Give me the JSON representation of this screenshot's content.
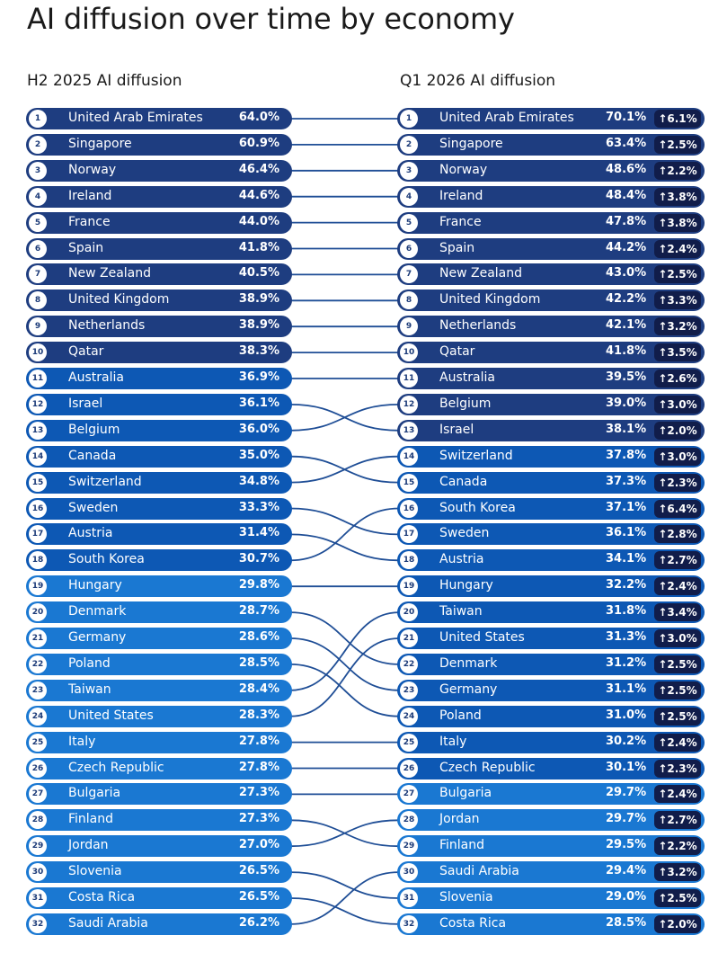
{
  "title": "AI diffusion over time by economy",
  "left_header": "H2 2025 AI diffusion",
  "right_header": "Q1 2026 AI diffusion",
  "colors": {
    "tier1": "#1e3d80",
    "tier2": "#0d58b4",
    "tier3": "#1a78d2",
    "delta_bg": "#111d4a",
    "link": "#1f4e96"
  },
  "chart_data": {
    "type": "table",
    "h2_2025": [
      {
        "rank": "1",
        "economy": "United Arab Emirates",
        "value": "64.0%",
        "share": 64.0
      },
      {
        "rank": "2",
        "economy": "Singapore",
        "value": "60.9%",
        "share": 60.9
      },
      {
        "rank": "3",
        "economy": "Norway",
        "value": "46.4%",
        "share": 46.4
      },
      {
        "rank": "4",
        "economy": "Ireland",
        "value": "44.6%",
        "share": 44.6
      },
      {
        "rank": "5",
        "economy": "France",
        "value": "44.0%",
        "share": 44.0
      },
      {
        "rank": "6",
        "economy": "Spain",
        "value": "41.8%",
        "share": 41.8
      },
      {
        "rank": "7",
        "economy": "New Zealand",
        "value": "40.5%",
        "share": 40.5
      },
      {
        "rank": "8",
        "economy": "United Kingdom",
        "value": "38.9%",
        "share": 38.9
      },
      {
        "rank": "9",
        "economy": "Netherlands",
        "value": "38.9%",
        "share": 38.9
      },
      {
        "rank": "10",
        "economy": "Qatar",
        "value": "38.3%",
        "share": 38.3
      },
      {
        "rank": "11",
        "economy": "Australia",
        "value": "36.9%",
        "share": 36.9
      },
      {
        "rank": "12",
        "economy": "Israel",
        "value": "36.1%",
        "share": 36.1
      },
      {
        "rank": "13",
        "economy": "Belgium",
        "value": "36.0%",
        "share": 36.0
      },
      {
        "rank": "14",
        "economy": "Canada",
        "value": "35.0%",
        "share": 35.0
      },
      {
        "rank": "15",
        "economy": "Switzerland",
        "value": "34.8%",
        "share": 34.8
      },
      {
        "rank": "16",
        "economy": "Sweden",
        "value": "33.3%",
        "share": 33.3
      },
      {
        "rank": "17",
        "economy": "Austria",
        "value": "31.4%",
        "share": 31.4
      },
      {
        "rank": "18",
        "economy": "South Korea",
        "value": "30.7%",
        "share": 30.7
      },
      {
        "rank": "19",
        "economy": "Hungary",
        "value": "29.8%",
        "share": 29.8
      },
      {
        "rank": "20",
        "economy": "Denmark",
        "value": "28.7%",
        "share": 28.7
      },
      {
        "rank": "21",
        "economy": "Germany",
        "value": "28.6%",
        "share": 28.6
      },
      {
        "rank": "22",
        "economy": "Poland",
        "value": "28.5%",
        "share": 28.5
      },
      {
        "rank": "23",
        "economy": "Taiwan",
        "value": "28.4%",
        "share": 28.4
      },
      {
        "rank": "24",
        "economy": "United States",
        "value": "28.3%",
        "share": 28.3
      },
      {
        "rank": "25",
        "economy": "Italy",
        "value": "27.8%",
        "share": 27.8
      },
      {
        "rank": "26",
        "economy": "Czech Republic",
        "value": "27.8%",
        "share": 27.8
      },
      {
        "rank": "27",
        "economy": "Bulgaria",
        "value": "27.3%",
        "share": 27.3
      },
      {
        "rank": "28",
        "economy": "Finland",
        "value": "27.3%",
        "share": 27.3
      },
      {
        "rank": "29",
        "economy": "Jordan",
        "value": "27.0%",
        "share": 27.0
      },
      {
        "rank": "30",
        "economy": "Slovenia",
        "value": "26.5%",
        "share": 26.5
      },
      {
        "rank": "31",
        "economy": "Costa Rica",
        "value": "26.5%",
        "share": 26.5
      },
      {
        "rank": "32",
        "economy": "Saudi Arabia",
        "value": "26.2%",
        "share": 26.2
      }
    ],
    "q1_2026": [
      {
        "rank": "1",
        "economy": "United Arab Emirates",
        "value": "70.1%",
        "share": 70.1,
        "change": "↑6.1%"
      },
      {
        "rank": "2",
        "economy": "Singapore",
        "value": "63.4%",
        "share": 63.4,
        "change": "↑2.5%"
      },
      {
        "rank": "3",
        "economy": "Norway",
        "value": "48.6%",
        "share": 48.6,
        "change": "↑2.2%"
      },
      {
        "rank": "4",
        "economy": "Ireland",
        "value": "48.4%",
        "share": 48.4,
        "change": "↑3.8%"
      },
      {
        "rank": "5",
        "economy": "France",
        "value": "47.8%",
        "share": 47.8,
        "change": "↑3.8%"
      },
      {
        "rank": "6",
        "economy": "Spain",
        "value": "44.2%",
        "share": 44.2,
        "change": "↑2.4%"
      },
      {
        "rank": "7",
        "economy": "New Zealand",
        "value": "43.0%",
        "share": 43.0,
        "change": "↑2.5%"
      },
      {
        "rank": "8",
        "economy": "United Kingdom",
        "value": "42.2%",
        "share": 42.2,
        "change": "↑3.3%"
      },
      {
        "rank": "9",
        "economy": "Netherlands",
        "value": "42.1%",
        "share": 42.1,
        "change": "↑3.2%"
      },
      {
        "rank": "10",
        "economy": "Qatar",
        "value": "41.8%",
        "share": 41.8,
        "change": "↑3.5%"
      },
      {
        "rank": "11",
        "economy": "Australia",
        "value": "39.5%",
        "share": 39.5,
        "change": "↑2.6%"
      },
      {
        "rank": "12",
        "economy": "Belgium",
        "value": "39.0%",
        "share": 39.0,
        "change": "↑3.0%"
      },
      {
        "rank": "13",
        "economy": "Israel",
        "value": "38.1%",
        "share": 38.1,
        "change": "↑2.0%"
      },
      {
        "rank": "14",
        "economy": "Switzerland",
        "value": "37.8%",
        "share": 37.8,
        "change": "↑3.0%"
      },
      {
        "rank": "15",
        "economy": "Canada",
        "value": "37.3%",
        "share": 37.3,
        "change": "↑2.3%"
      },
      {
        "rank": "16",
        "economy": "South Korea",
        "value": "37.1%",
        "share": 37.1,
        "change": "↑6.4%"
      },
      {
        "rank": "17",
        "economy": "Sweden",
        "value": "36.1%",
        "share": 36.1,
        "change": "↑2.8%"
      },
      {
        "rank": "18",
        "economy": "Austria",
        "value": "34.1%",
        "share": 34.1,
        "change": "↑2.7%"
      },
      {
        "rank": "19",
        "economy": "Hungary",
        "value": "32.2%",
        "share": 32.2,
        "change": "↑2.4%"
      },
      {
        "rank": "20",
        "economy": "Taiwan",
        "value": "31.8%",
        "share": 31.8,
        "change": "↑3.4%"
      },
      {
        "rank": "21",
        "economy": "United States",
        "value": "31.3%",
        "share": 31.3,
        "change": "↑3.0%"
      },
      {
        "rank": "22",
        "economy": "Denmark",
        "value": "31.2%",
        "share": 31.2,
        "change": "↑2.5%"
      },
      {
        "rank": "23",
        "economy": "Germany",
        "value": "31.1%",
        "share": 31.1,
        "change": "↑2.5%"
      },
      {
        "rank": "24",
        "economy": "Poland",
        "value": "31.0%",
        "share": 31.0,
        "change": "↑2.5%"
      },
      {
        "rank": "25",
        "economy": "Italy",
        "value": "30.2%",
        "share": 30.2,
        "change": "↑2.4%"
      },
      {
        "rank": "26",
        "economy": "Czech Republic",
        "value": "30.1%",
        "share": 30.1,
        "change": "↑2.3%"
      },
      {
        "rank": "27",
        "economy": "Bulgaria",
        "value": "29.7%",
        "share": 29.7,
        "change": "↑2.4%"
      },
      {
        "rank": "28",
        "economy": "Jordan",
        "value": "29.7%",
        "share": 29.7,
        "change": "↑2.7%"
      },
      {
        "rank": "29",
        "economy": "Finland",
        "value": "29.5%",
        "share": 29.5,
        "change": "↑2.2%"
      },
      {
        "rank": "30",
        "economy": "Saudi Arabia",
        "value": "29.4%",
        "share": 29.4,
        "change": "↑3.2%"
      },
      {
        "rank": "31",
        "economy": "Slovenia",
        "value": "29.0%",
        "share": 29.0,
        "change": "↑2.5%"
      },
      {
        "rank": "32",
        "economy": "Costa Rica",
        "value": "28.5%",
        "share": 28.5,
        "change": "↑2.0%"
      }
    ]
  }
}
